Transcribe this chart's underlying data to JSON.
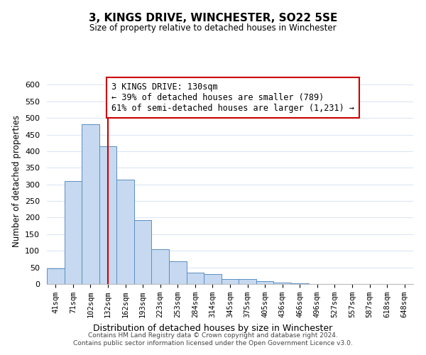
{
  "title": "3, KINGS DRIVE, WINCHESTER, SO22 5SE",
  "subtitle": "Size of property relative to detached houses in Winchester",
  "bar_labels": [
    "41sqm",
    "71sqm",
    "102sqm",
    "132sqm",
    "162sqm",
    "193sqm",
    "223sqm",
    "253sqm",
    "284sqm",
    "314sqm",
    "345sqm",
    "375sqm",
    "405sqm",
    "436sqm",
    "466sqm",
    "496sqm",
    "527sqm",
    "557sqm",
    "587sqm",
    "618sqm",
    "648sqm"
  ],
  "bar_values": [
    46,
    311,
    480,
    414,
    314,
    192,
    105,
    69,
    35,
    30,
    14,
    15,
    8,
    5,
    2,
    0,
    0,
    0,
    0,
    0,
    1
  ],
  "bar_color": "#c6d9f0",
  "bar_edge_color": "#5a8fc2",
  "vline_x": 3,
  "vline_color": "#cc0000",
  "ylim": [
    0,
    620
  ],
  "yticks": [
    0,
    50,
    100,
    150,
    200,
    250,
    300,
    350,
    400,
    450,
    500,
    550,
    600
  ],
  "ylabel": "Number of detached properties",
  "xlabel": "Distribution of detached houses by size in Winchester",
  "annotation_title": "3 KINGS DRIVE: 130sqm",
  "annotation_line1": "← 39% of detached houses are smaller (789)",
  "annotation_line2": "61% of semi-detached houses are larger (1,231) →",
  "annotation_box_color": "#ffffff",
  "annotation_box_edge": "#cc0000",
  "footer_line1": "Contains HM Land Registry data © Crown copyright and database right 2024.",
  "footer_line2": "Contains public sector information licensed under the Open Government Licence v3.0.",
  "bg_color": "#ffffff",
  "grid_color": "#dce6f4"
}
